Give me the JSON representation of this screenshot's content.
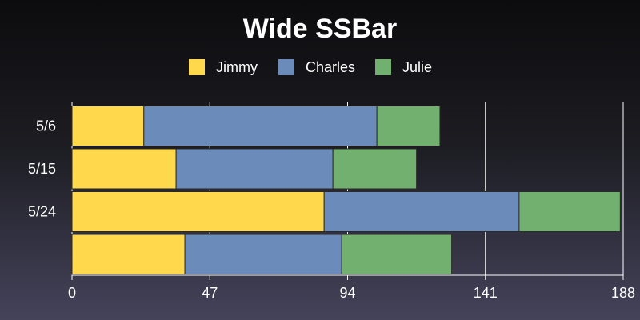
{
  "chart_data": {
    "type": "bar",
    "orientation": "horizontal",
    "stacked": true,
    "title": "Wide SSBar",
    "categories": [
      "5/6",
      "5/15",
      "5/24",
      ""
    ],
    "series": [
      {
        "name": "Jimmy",
        "values": [
          24.5,
          35.5,
          86,
          38.5
        ],
        "color": "#ffd84c"
      },
      {
        "name": "Charles",
        "values": [
          79.5,
          53.5,
          66.5,
          53.5
        ],
        "color": "#6b8bba"
      },
      {
        "name": "Julie",
        "values": [
          21.5,
          28.5,
          34.5,
          37.5
        ],
        "color": "#72b070"
      }
    ],
    "xlim": [
      0,
      188
    ],
    "xticks": [
      "0",
      "47",
      "94",
      "141",
      "188"
    ],
    "grid": true,
    "legend_position": "top"
  }
}
